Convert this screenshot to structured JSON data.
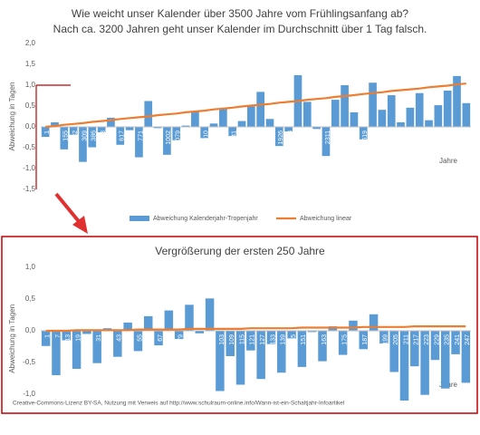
{
  "chart_data": [
    {
      "type": "bar",
      "title": "Wie weicht unser Kalender über 3500 Jahre vom Frühlingsanfang ab?",
      "subtitle": "Nach ca. 3200 Jahren geht unser Kalender im Durchschnitt über 1 Tag falsch.",
      "y_label": "Abweichung in Tagen",
      "x_label": "Jahre",
      "categories": [
        "1",
        "78",
        "155",
        "232",
        "309",
        "386",
        "463",
        "540",
        "617",
        "694",
        "771",
        "848",
        "925",
        "1002",
        "1079",
        "1156",
        "1233",
        "1310",
        "1387",
        "1464",
        "1541",
        "1618",
        "1695",
        "1772",
        "1849",
        "1926",
        "2003",
        "2080",
        "2157",
        "2234",
        "2311",
        "2388",
        "2465",
        "2542",
        "2619",
        "2696",
        "2773",
        "2850",
        "2927",
        "3004",
        "3081",
        "3158",
        "3235",
        "3312",
        "3389",
        "3466"
      ],
      "series": [
        {
          "name": "Abweichung Kalenderjahr-Tropenjahr",
          "color": "#5b9bd5",
          "kind": "bar",
          "values": [
            -0.24,
            0.11,
            -0.54,
            -0.19,
            -0.84,
            -0.49,
            -0.13,
            0.22,
            -0.43,
            -0.08,
            -0.73,
            0.62,
            -0.03,
            -0.67,
            -0.32,
            0.03,
            0.38,
            -0.27,
            0.08,
            0.43,
            -0.22,
            0.14,
            0.49,
            0.84,
            0.19,
            -0.46,
            -0.11,
            1.24,
            0.6,
            -0.05,
            -0.7,
            0.65,
            1.0,
            0.35,
            -0.3,
            1.06,
            0.41,
            0.76,
            0.11,
            0.46,
            0.81,
            0.16,
            0.52,
            0.87,
            1.22,
            0.57
          ]
        },
        {
          "name": "Abweichung linear",
          "color": "#ed7d31",
          "kind": "line",
          "values": [
            0,
            0.02,
            0.05,
            0.07,
            0.09,
            0.12,
            0.14,
            0.16,
            0.19,
            0.21,
            0.23,
            0.25,
            0.28,
            0.3,
            0.32,
            0.35,
            0.37,
            0.39,
            0.42,
            0.44,
            0.46,
            0.49,
            0.51,
            0.53,
            0.55,
            0.58,
            0.6,
            0.62,
            0.65,
            0.67,
            0.69,
            0.72,
            0.74,
            0.76,
            0.79,
            0.81,
            0.83,
            0.86,
            0.88,
            0.9,
            0.92,
            0.95,
            0.97,
            0.99,
            1.02,
            1.04
          ]
        }
      ],
      "ylim": [
        -1.5,
        2
      ],
      "yticks": [
        {
          "value": 2,
          "label": "2,0"
        },
        {
          "value": 1.5,
          "label": "1,5"
        },
        {
          "value": 1,
          "label": "1,0"
        },
        {
          "value": 0.5,
          "label": "0,5"
        },
        {
          "value": 0,
          "label": "0,0"
        },
        {
          "value": -0.5,
          "label": "-0,5"
        },
        {
          "value": -1,
          "label": "-1,0"
        },
        {
          "value": -1.5,
          "label": "-1,5"
        }
      ],
      "legend": "bottom",
      "grid": false
    },
    {
      "type": "bar",
      "title": "Vergrößerung der ersten 250 Jahre",
      "y_label": "Abweichung in Tagen",
      "x_label": "Jahre",
      "caption": "Creative-Commons-Lizenz BY-SA, Nutzung mit Verweis auf http://www.schulraum-online.info/Wann-ist-ein-Schaltjahr-Infoartikel",
      "categories": [
        "1",
        "7",
        "13",
        "19",
        "25",
        "31",
        "37",
        "43",
        "49",
        "55",
        "61",
        "67",
        "73",
        "79",
        "85",
        "91",
        "97",
        "103",
        "109",
        "115",
        "121",
        "127",
        "133",
        "139",
        "145",
        "151",
        "157",
        "163",
        "169",
        "175",
        "181",
        "187",
        "193",
        "199",
        "205",
        "211",
        "217",
        "223",
        "229",
        "235",
        "241",
        "247"
      ],
      "series": [
        {
          "name": "Abweichung Kalenderjahr-Tropenjahr",
          "color": "#5b9bd5",
          "kind": "bar",
          "values": [
            -0.24,
            -0.7,
            -0.15,
            -0.6,
            -0.05,
            -0.51,
            0.04,
            -0.41,
            0.13,
            -0.32,
            0.23,
            -0.23,
            0.32,
            -0.13,
            0.41,
            -0.04,
            0.51,
            -0.95,
            -0.4,
            -0.85,
            -0.31,
            -0.76,
            -0.21,
            -0.66,
            -0.12,
            -0.57,
            -0.02,
            -0.48,
            0.07,
            -0.38,
            0.16,
            -0.29,
            0.26,
            -0.2,
            -0.65,
            -1.1,
            -0.56,
            -1.01,
            -0.46,
            -0.91,
            -0.37,
            -0.82
          ]
        },
        {
          "name": "Abweichung linear",
          "color": "#ed7d31",
          "kind": "line",
          "values": [
            0,
            0,
            0,
            0.01,
            0.01,
            0.01,
            0.01,
            0.01,
            0.01,
            0.02,
            0.02,
            0.02,
            0.02,
            0.02,
            0.03,
            0.03,
            0.03,
            0.03,
            0.03,
            0.03,
            0.04,
            0.04,
            0.04,
            0.04,
            0.04,
            0.05,
            0.05,
            0.05,
            0.05,
            0.05,
            0.05,
            0.06,
            0.06,
            0.06,
            0.06,
            0.06,
            0.07,
            0.07,
            0.07,
            0.07,
            0.07,
            0.07
          ]
        }
      ],
      "ylim": [
        -1.25,
        1
      ],
      "yticks": [
        {
          "value": 1,
          "label": "1,0"
        },
        {
          "value": 0.5,
          "label": "0,5"
        },
        {
          "value": 0,
          "label": "0,0"
        },
        {
          "value": -0.5,
          "label": "-0,5"
        },
        {
          "value": -1,
          "label": "-1,0"
        }
      ],
      "grid": false
    }
  ]
}
